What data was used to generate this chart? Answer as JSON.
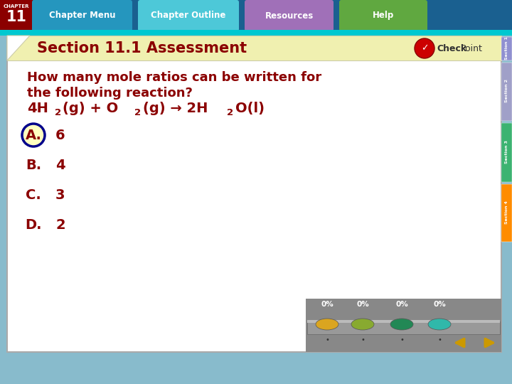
{
  "title": "Section 11.1 Assessment",
  "question_line1": "How many mole ratios can be written for",
  "question_line2": "the following reaction?",
  "answer_labels": [
    "A.",
    "B.",
    "C.",
    "D."
  ],
  "answer_values": [
    "6",
    "4",
    "3",
    "2"
  ],
  "title_color": "#8B0000",
  "question_color": "#8B0000",
  "equation_color": "#8B0000",
  "answer_color": "#8B0000",
  "answer_A_circle_edge": "#00008B",
  "answer_A_circle_fill": "#FFFFC0",
  "bg_main": "#FFFFFF",
  "fig_bg_color": "#88BBCC",
  "nav_bg": "#1A6090",
  "ch11_bg": "#8B0000",
  "btn_colors": [
    "#2596be",
    "#4DC8D8",
    "#A070B8",
    "#60A840"
  ],
  "btn_labels": [
    "Chapter Menu",
    "Chapter Outline",
    "Resources",
    "Help"
  ],
  "title_bar_color": "#F0F0B0",
  "title_bar_edge": "#CCCCAA",
  "side_tab_colors": [
    "#9090D0",
    "#A0A0C8",
    "#3CB371",
    "#FF8C00"
  ],
  "side_tab_labels": [
    "Section 1",
    "Section 2",
    "Section 3",
    "Section 4"
  ],
  "poll_bg": "#888888",
  "poll_bar_bg": "#AAAAAA",
  "poll_colors": [
    "#DAA520",
    "#88AA30",
    "#228855",
    "#30B8AA"
  ],
  "poll_pct": [
    "0%",
    "0%",
    "0%",
    "0%"
  ],
  "arrow_color": "#CC9900",
  "checkpoint_circle_color": "#8B0000",
  "border_color": "#AAAAAA"
}
